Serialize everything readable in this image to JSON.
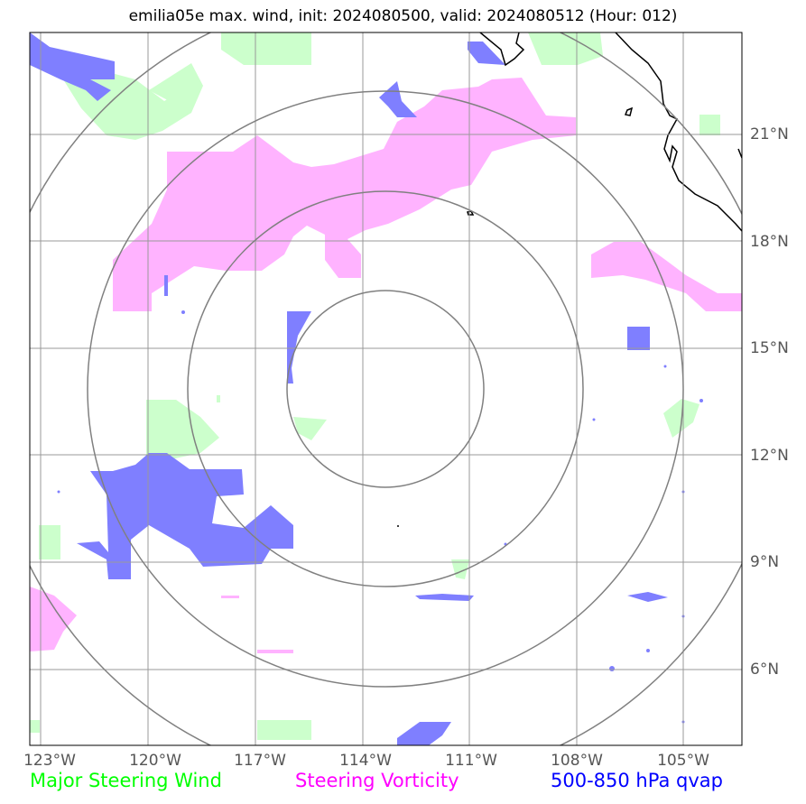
{
  "title": "emilia05e max. wind, init: 2024080500, valid: 2024080512 (Hour: 012)",
  "lon_labels": [
    "123°W",
    "120°W",
    "117°W",
    "114°W",
    "111°W",
    "108°W",
    "105°W"
  ],
  "lat_labels": [
    "21°N",
    "18°N",
    "15°N",
    "12°N",
    "9°N",
    "6°N"
  ],
  "legend": {
    "wind": {
      "label": "Major Steering Wind",
      "color": "#00ff00"
    },
    "vorticity": {
      "label": "Steering Vorticity",
      "color": "#ff00ff"
    },
    "qvap": {
      "label": "500-850 hPa qvap",
      "color": "#0000ff"
    }
  },
  "colors": {
    "wind_fill": "#ccffcc",
    "vorticity_fill": "#ffb3ff",
    "qvap_fill": "#7f7fff",
    "grid": "#999999",
    "range_rings": "#808080",
    "coastline": "#000000"
  },
  "storm_center": {
    "lon": -113.4,
    "lat": 13.9
  },
  "range_rings_count": 4
}
